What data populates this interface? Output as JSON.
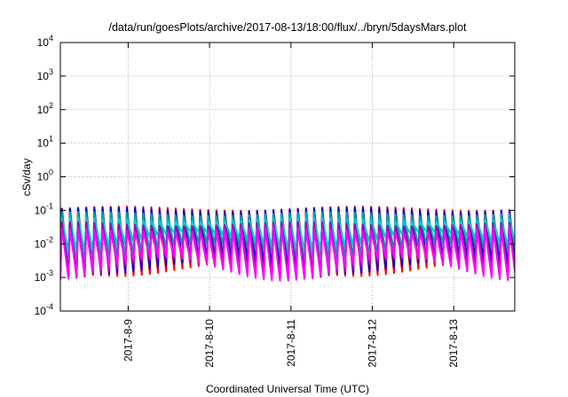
{
  "chart_data": {
    "type": "line",
    "title": "/data/run/goesPlots/archive/2017-08-13/18:00/flux/../bryn/5daysMars.plot",
    "xlabel": "Coordinated Universal Time (UTC)",
    "ylabel": "cSv/day",
    "y_scale": "log",
    "ylim": [
      0.0001,
      10000
    ],
    "y_ticks": [
      {
        "value": 0.0001,
        "base": "10",
        "exp": "-4"
      },
      {
        "value": 0.001,
        "base": "10",
        "exp": "-3"
      },
      {
        "value": 0.01,
        "base": "10",
        "exp": "-2"
      },
      {
        "value": 0.1,
        "base": "10",
        "exp": "-1"
      },
      {
        "value": 1,
        "base": "10",
        "exp": "0"
      },
      {
        "value": 10,
        "base": "10",
        "exp": "1"
      },
      {
        "value": 100,
        "base": "10",
        "exp": "2"
      },
      {
        "value": 1000,
        "base": "10",
        "exp": "3"
      },
      {
        "value": 10000,
        "base": "10",
        "exp": "4"
      }
    ],
    "xlim": [
      "2017-08-08 04:00",
      "2017-08-13 18:00"
    ],
    "x_ticks": [
      "2017-8-9",
      "2017-8-10",
      "2017-8-11",
      "2017-8-12",
      "2017-8-13"
    ],
    "x_tick_values": [
      "2017-08-09",
      "2017-08-10",
      "2017-08-11",
      "2017-08-12",
      "2017-08-13"
    ],
    "grid": true,
    "sawtooth_period_hours": 2.4,
    "series": [
      {
        "color": "#ff0000",
        "peak": 0.13,
        "trough": 0.0011
      },
      {
        "color": "#0000cc",
        "peak": 0.12,
        "trough": 0.0013
      },
      {
        "color": "#00a0a0",
        "peak": 0.09,
        "trough": 0.003
      },
      {
        "color": "#00cccc",
        "peak": 0.06,
        "trough": 0.006
      },
      {
        "color": "#aa00aa",
        "peak": 0.045,
        "trough": 0.0009
      },
      {
        "color": "#ff00ff",
        "peak": 0.03,
        "trough": 0.0008
      }
    ]
  }
}
